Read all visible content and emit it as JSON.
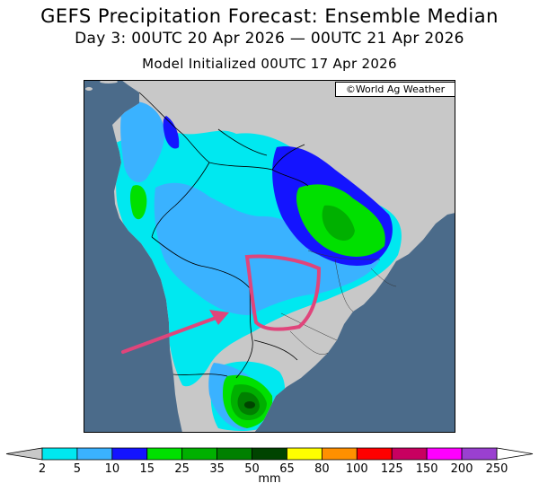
{
  "header": {
    "title": "GEFS Precipitation Forecast: Ensemble Median",
    "period": "Day 3: 00UTC 20 Apr 2026 — 00UTC 21 Apr 2026",
    "init": "Model Initialized 00UTC 17 Apr 2026"
  },
  "map": {
    "credit": "©World Ag Weather",
    "ocean_color": "#4b6b8a",
    "land_color": "#c8c8c8",
    "annotations": {
      "circle_color": "#e0457b",
      "arrow_color": "#e0457b"
    }
  },
  "legend": {
    "units": "mm",
    "ticks": [
      "2",
      "5",
      "10",
      "15",
      "25",
      "35",
      "50",
      "65",
      "80",
      "100",
      "125",
      "150",
      "200",
      "250"
    ],
    "colors": [
      "#00e8f0",
      "#3ab2ff",
      "#1414ff",
      "#00e000",
      "#00b000",
      "#008000",
      "#004400",
      "#ffff00",
      "#ff9000",
      "#ff0000",
      "#c80060",
      "#ff00ff",
      "#9a40d0"
    ],
    "end_low_color": "#c8c8c8",
    "end_high_color": "#ffffff"
  }
}
